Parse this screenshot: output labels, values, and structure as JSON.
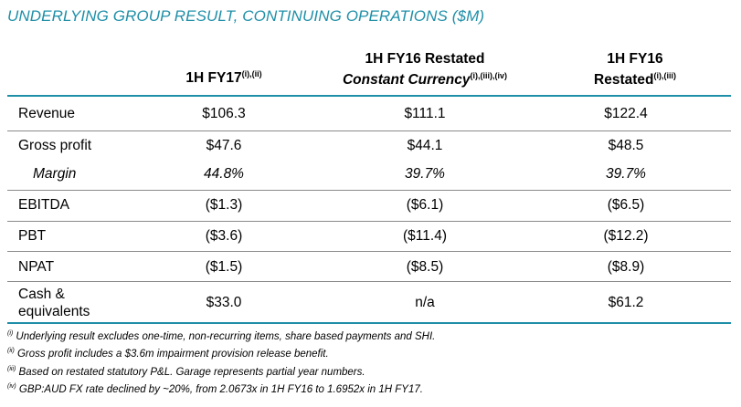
{
  "title": "UNDERLYING GROUP RESULT, CONTINUING OPERATIONS ($M)",
  "columns": {
    "c1": {
      "line1": "1H FY17",
      "sup": "(i),(ii)"
    },
    "c2": {
      "line1": "1H FY16 Restated",
      "line2": "Constant Currency",
      "sup": "(i),(iii),(iv)"
    },
    "c3": {
      "line1": "1H FY16",
      "line2": "Restated",
      "sup": "(i),(iii)"
    }
  },
  "rows": {
    "revenue": {
      "label": "Revenue",
      "v1": "$106.3",
      "v2": "$111.1",
      "v3": "$122.4"
    },
    "gross_profit": {
      "label": "Gross profit",
      "v1": "$47.6",
      "v2": "$44.1",
      "v3": "$48.5"
    },
    "margin": {
      "label": "Margin",
      "v1": "44.8%",
      "v2": "39.7%",
      "v3": "39.7%"
    },
    "ebitda": {
      "label": "EBITDA",
      "v1": "($1.3)",
      "v2": "($6.1)",
      "v3": "($6.5)"
    },
    "pbt": {
      "label": "PBT",
      "v1": "($3.6)",
      "v2": "($11.4)",
      "v3": "($12.2)"
    },
    "npat": {
      "label": "NPAT",
      "v1": "($1.5)",
      "v2": "($8.5)",
      "v3": "($8.9)"
    },
    "cash": {
      "label_line1": "Cash &",
      "label_line2": "equivalents",
      "v1": "$33.0",
      "v2": "n/a",
      "v3": "$61.2"
    }
  },
  "notes": [
    {
      "marker": "(i)",
      "text": " Underlying result excludes one-time, non-recurring items, share based payments and SHI."
    },
    {
      "marker": "(ii)",
      "text": " Gross profit includes a $3.6m impairment provision release benefit."
    },
    {
      "marker": "(iii)",
      "text": " Based on restated statutory P&L. Garage represents partial year numbers."
    },
    {
      "marker": "(iv)",
      "text": " GBP:AUD FX rate declined by ~20%, from 2.0673x in 1H FY16 to 1.6952x in 1H FY17."
    }
  ]
}
